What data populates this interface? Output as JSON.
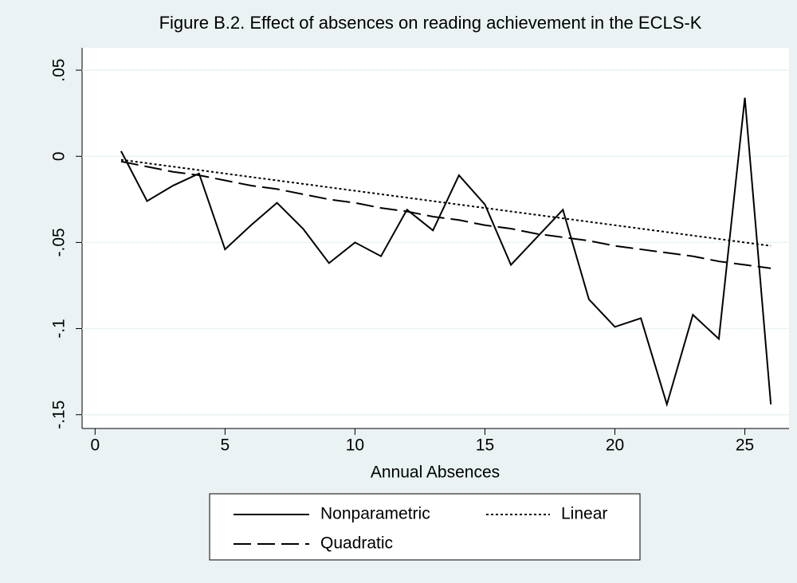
{
  "chart_data": {
    "type": "line",
    "title": "Figure B.2. Effect of absences on reading achievement in the ECLS-K",
    "xlabel": "Annual Absences",
    "x": [
      1,
      2,
      3,
      4,
      5,
      6,
      7,
      8,
      9,
      10,
      11,
      12,
      13,
      14,
      15,
      16,
      17,
      18,
      19,
      20,
      21,
      22,
      23,
      24,
      25,
      26
    ],
    "series": [
      {
        "name": "Nonparametric",
        "color": "#000000",
        "style": "solid",
        "values": [
          0.003,
          -0.026,
          -0.017,
          -0.01,
          -0.054,
          -0.04,
          -0.027,
          -0.042,
          -0.062,
          -0.05,
          -0.058,
          -0.031,
          -0.043,
          -0.011,
          -0.028,
          -0.063,
          -0.047,
          -0.031,
          -0.083,
          -0.099,
          -0.094,
          -0.144,
          -0.092,
          -0.106,
          0.034,
          -0.144
        ]
      },
      {
        "name": "Linear",
        "color": "#000000",
        "style": "dotted",
        "values": [
          -0.002,
          -0.004,
          -0.006,
          -0.008,
          -0.01,
          -0.012,
          -0.014,
          -0.016,
          -0.018,
          -0.02,
          -0.022,
          -0.024,
          -0.026,
          -0.028,
          -0.03,
          -0.032,
          -0.034,
          -0.036,
          -0.038,
          -0.04,
          -0.042,
          -0.044,
          -0.046,
          -0.048,
          -0.05,
          -0.052
        ]
      },
      {
        "name": "Quadratic",
        "color": "#000000",
        "style": "dashed",
        "values": [
          -0.003,
          -0.006,
          -0.009,
          -0.011,
          -0.014,
          -0.017,
          -0.019,
          -0.022,
          -0.025,
          -0.027,
          -0.03,
          -0.032,
          -0.035,
          -0.037,
          -0.04,
          -0.042,
          -0.045,
          -0.047,
          -0.049,
          -0.052,
          -0.054,
          -0.056,
          -0.058,
          -0.061,
          -0.063,
          -0.065
        ]
      }
    ],
    "xlim": [
      -0.5,
      26.7
    ],
    "xticks": [
      0,
      5,
      10,
      15,
      20,
      25
    ],
    "ylim": [
      -0.158,
      0.063
    ],
    "yticks": [
      {
        "value": 0.05,
        "label": ".05"
      },
      0,
      {
        "value": -0.05,
        "label": "-.05"
      },
      {
        "value": -0.1,
        "label": "-.1"
      },
      {
        "value": -0.15,
        "label": "-.15"
      }
    ],
    "grid": true,
    "legend": "bottom"
  }
}
